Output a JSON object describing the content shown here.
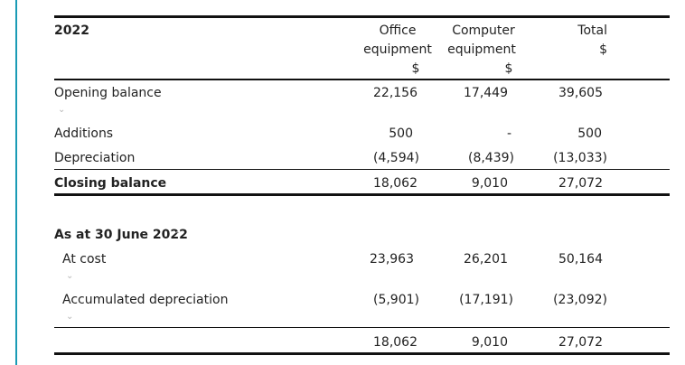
{
  "header": {
    "year": "2022",
    "col_office": [
      "Office",
      "equipment",
      "$"
    ],
    "col_computer": [
      "Computer",
      "equipment",
      "$"
    ],
    "col_total": [
      "Total",
      "$"
    ]
  },
  "rows": {
    "opening": {
      "label": "Opening balance",
      "office": "22,156",
      "computer": "17,449",
      "total": "39,605"
    },
    "additions": {
      "label": "Additions",
      "office": "500",
      "computer": "-",
      "total": "500"
    },
    "depreciation": {
      "label": "Depreciation",
      "office": "(4,594)",
      "computer": "(8,439)",
      "total": "(13,033)"
    },
    "closing": {
      "label": "Closing balance",
      "office": "18,062",
      "computer": "9,010",
      "total": "27,072"
    }
  },
  "section2": {
    "heading": "As at 30 June 2022",
    "at_cost": {
      "label": "At cost",
      "office": "23,963",
      "computer": "26,201",
      "total": "50,164"
    },
    "accum": {
      "label": "Accumulated depreciation",
      "office": "(5,901)",
      "computer": "(17,191)",
      "total": "(23,092)"
    },
    "net": {
      "office": "18,062",
      "computer": "9,010",
      "total": "27,072"
    }
  },
  "icons": {
    "chevron_down": "⌄",
    "chevron_up": "⌃"
  },
  "colors": {
    "accent_rule": "#1a9bb5",
    "chevron": "#b8b8b8"
  }
}
